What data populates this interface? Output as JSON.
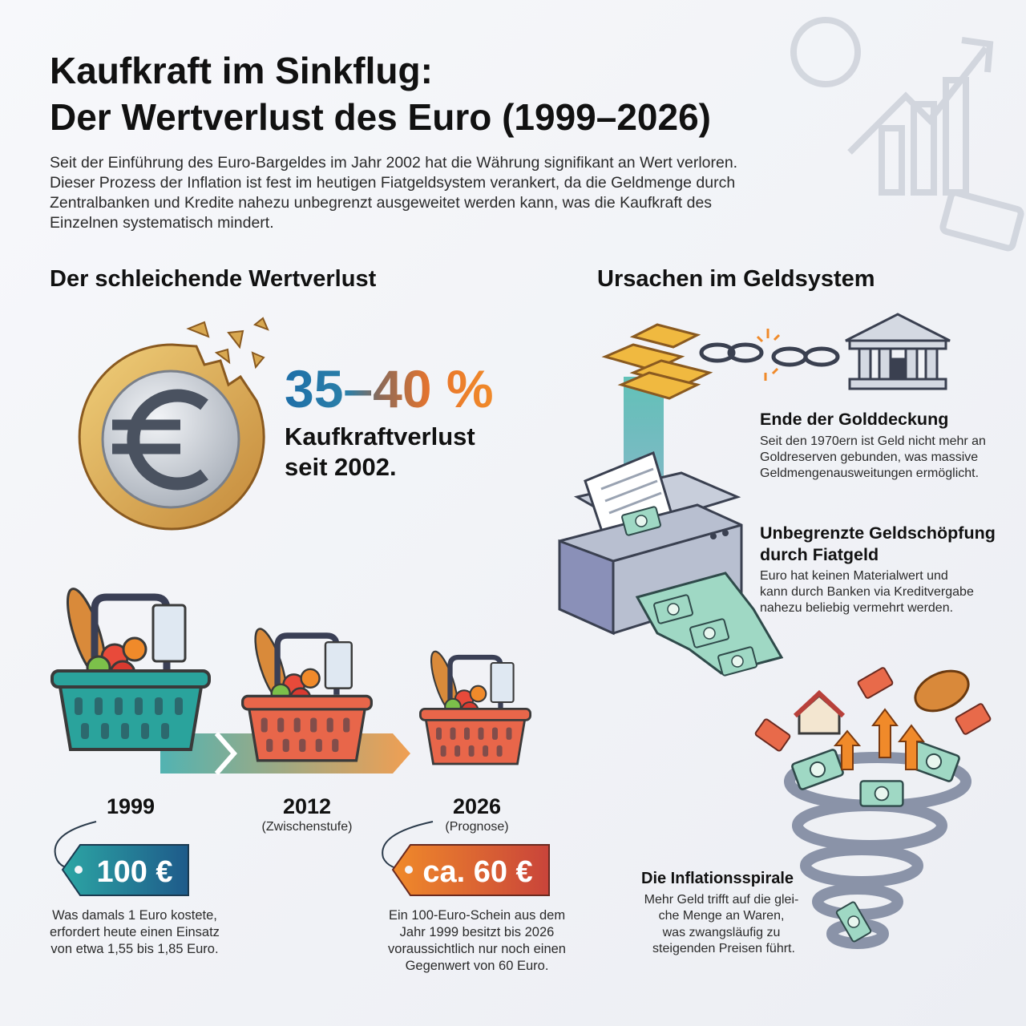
{
  "header": {
    "title": [
      "Kaufkraft im Sinkflug:",
      "Der Wertverlust des Euro (1999–2026)"
    ],
    "intro": [
      "Seit der Einführung des Euro-Bargeldes im Jahr 2002 hat die Währung signifikant an Wert verloren.",
      "Dieser Prozess der Inflation ist fest im heutigen Fiatgeldsystem verankert, da die Geldmenge durch",
      "Zentralbanken und Kredite nahezu unbegrenzt ausgeweitet werden kann, was die Kaufkraft des",
      "Einzelnen systematisch mindert."
    ]
  },
  "loss": {
    "heading": "Der schleichende Wertverlust",
    "stat": "35–40 %",
    "stat_label": [
      "Kaufkraftverlust",
      "seit 2002."
    ],
    "timeline": [
      {
        "year": "1999",
        "price": "100 €",
        "description": [
          "Was damals 1 Euro kostete,",
          "erfordert heute einen Einsatz",
          "von etwa 1,55 bis 1,85 Euro."
        ]
      },
      {
        "year": "2012",
        "note": "(Zwischenstufe)"
      },
      {
        "year": "2026",
        "note": "(Prognose)",
        "price": "ca. 60 €",
        "description": [
          "Ein 100-Euro-Schein aus dem",
          "Jahr 1999 besitzt bis 2026",
          "voraussichtlich nur noch einen",
          "Gegenwert von 60 Euro."
        ]
      }
    ]
  },
  "causes": {
    "heading": "Ursachen im Geldsystem",
    "items": [
      {
        "title": [
          "Ende der Golddeckung"
        ],
        "text": [
          "Seit den 1970ern ist Geld nicht mehr an",
          "Goldreserven gebunden, was massive",
          "Geldmengenausweitungen ermöglicht."
        ]
      },
      {
        "title": [
          "Unbegrenzte Geldschöpfung",
          "durch Fiatgeld"
        ],
        "text": [
          "Euro hat keinen Materialwert und",
          "kann durch Banken via Kreditvergabe",
          "nahezu beliebig vermehrt werden."
        ]
      },
      {
        "title": [
          "Die Inflationsspirale"
        ],
        "text": [
          "Mehr Geld trifft auf die glei-",
          "che Menge an Waren,",
          "was zwangsläufig zu",
          "steigenden Preisen führt."
        ]
      }
    ]
  }
}
